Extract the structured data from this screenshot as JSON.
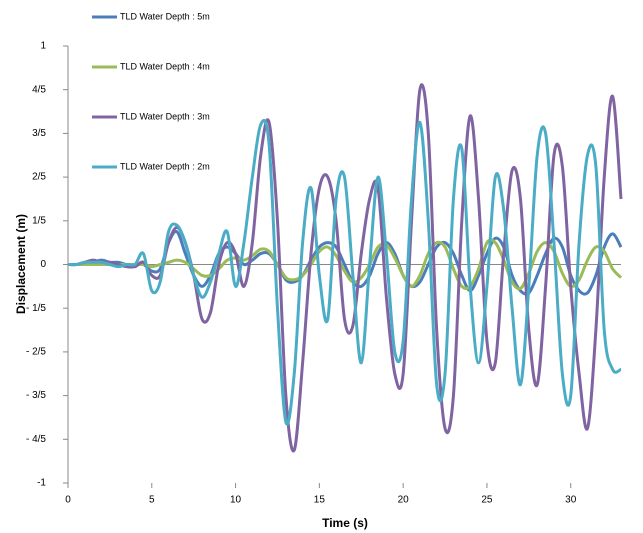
{
  "chart_data": {
    "type": "line",
    "xlabel": "Time (s)",
    "ylabel": "Displacement (m)",
    "x": [
      0,
      0.5,
      1,
      1.5,
      2,
      2.5,
      3,
      3.5,
      4,
      4.5,
      5,
      5.5,
      6,
      6.5,
      7,
      7.5,
      8,
      8.5,
      9,
      9.5,
      10,
      10.5,
      11,
      11.5,
      12,
      12.5,
      13,
      13.5,
      14,
      14.5,
      15,
      15.5,
      16,
      16.5,
      17,
      17.5,
      18,
      18.5,
      19,
      19.5,
      20,
      20.5,
      21,
      21.5,
      22,
      22.5,
      23,
      23.5,
      24,
      24.5,
      25,
      25.5,
      26,
      26.5,
      27,
      27.5,
      28,
      28.5,
      29,
      29.5,
      30,
      30.5,
      31,
      31.5,
      32,
      32.5,
      33
    ],
    "series": [
      {
        "name": "TLD Water Depth : 5m",
        "color": "#4a7ebb",
        "values": [
          0,
          0,
          0.01,
          0.01,
          0.02,
          0.01,
          0.01,
          0,
          0,
          0,
          -0.03,
          -0.02,
          0.1,
          0.15,
          0.05,
          -0.05,
          -0.1,
          -0.05,
          0.05,
          0.08,
          0.05,
          0,
          0.02,
          0.05,
          0.05,
          0,
          -0.07,
          -0.08,
          -0.05,
          0.02,
          0.08,
          0.1,
          0.08,
          0,
          -0.08,
          -0.1,
          -0.05,
          0.05,
          0.1,
          0.05,
          -0.05,
          -0.1,
          -0.08,
          0,
          0.08,
          0.1,
          0.05,
          -0.05,
          -0.12,
          -0.05,
          0.05,
          0.12,
          0.08,
          -0.05,
          -0.12,
          -0.13,
          -0.05,
          0.05,
          0.12,
          0.08,
          -0.05,
          -0.12,
          -0.13,
          -0.05,
          0.08,
          0.14,
          0.08
        ]
      },
      {
        "name": "TLD Water Depth : 4m",
        "color": "#9bbb59",
        "values": [
          0,
          0,
          0,
          0,
          0,
          0,
          0,
          0,
          0,
          0,
          -0.01,
          0,
          0.01,
          0.02,
          0.01,
          -0.02,
          -0.05,
          -0.05,
          -0.02,
          0.02,
          0.03,
          0.02,
          0.04,
          0.07,
          0.06,
          0,
          -0.06,
          -0.07,
          -0.05,
          0,
          0.06,
          0.08,
          0.04,
          -0.03,
          -0.08,
          -0.06,
          0,
          0.08,
          0.09,
          0.03,
          -0.05,
          -0.1,
          -0.05,
          0.05,
          0.1,
          0.08,
          -0.02,
          -0.1,
          -0.1,
          -0.02,
          0.1,
          0.1,
          0.02,
          -0.08,
          -0.11,
          -0.04,
          0.06,
          0.1,
          0.06,
          -0.04,
          -0.1,
          -0.07,
          0.02,
          0.08,
          0.06,
          -0.02,
          -0.06
        ]
      },
      {
        "name": "TLD Water Depth : 3m",
        "color": "#8064a2",
        "values": [
          0,
          0,
          0.01,
          0.02,
          0.01,
          0.01,
          0,
          -0.01,
          -0.01,
          0.01,
          -0.05,
          -0.05,
          0.1,
          0.17,
          0.1,
          -0.05,
          -0.25,
          -0.22,
          0,
          0.1,
          0.05,
          -0.1,
          0.1,
          0.5,
          0.65,
          0.2,
          -0.6,
          -0.85,
          -0.45,
          0.05,
          0.35,
          0.4,
          0.2,
          -0.25,
          -0.28,
          0.05,
          0.3,
          0.35,
          -0.15,
          -0.5,
          -0.5,
          0.2,
          0.8,
          0.6,
          -0.3,
          -0.75,
          -0.6,
          0.2,
          0.68,
          0.3,
          -0.35,
          -0.45,
          0.05,
          0.43,
          0.3,
          -0.3,
          -0.55,
          -0.1,
          0.5,
          0.45,
          -0.1,
          -0.5,
          -0.75,
          -0.3,
          0.4,
          0.77,
          0.3
        ]
      },
      {
        "name": "TLD Water Depth : 2m",
        "color": "#4bacc6",
        "values": [
          0,
          0,
          0.01,
          0.01,
          0.01,
          0,
          -0.01,
          0,
          0,
          0.05,
          -0.12,
          -0.08,
          0.15,
          0.18,
          0.1,
          -0.05,
          -0.15,
          -0.08,
          0.05,
          0.15,
          -0.1,
          0.1,
          0.4,
          0.64,
          0.55,
          -0.2,
          -0.72,
          -0.5,
          0.1,
          0.35,
          -0.05,
          -0.25,
          0.3,
          0.4,
          -0.05,
          -0.45,
          0,
          0.4,
          0.05,
          -0.4,
          -0.35,
          0.3,
          0.65,
          0.2,
          -0.55,
          -0.5,
          0.3,
          0.53,
          -0.1,
          -0.45,
          -0.1,
          0.4,
          0.25,
          -0.2,
          -0.55,
          -0.1,
          0.5,
          0.6,
          0.1,
          -0.5,
          -0.6,
          0.1,
          0.5,
          0.45,
          -0.3,
          -0.48,
          -0.48
        ]
      }
    ],
    "xlim": [
      0,
      33
    ],
    "xticks": [
      0,
      5,
      10,
      15,
      20,
      25,
      30
    ],
    "ylim": [
      -1,
      1
    ],
    "yticks": [
      -1,
      {
        "value": -0.8,
        "label": "- 4/5"
      },
      {
        "value": -0.6,
        "label": "- 3/5"
      },
      {
        "value": -0.4,
        "label": "- 2/5"
      },
      {
        "value": -0.2,
        "label": "- 1/5"
      },
      0,
      {
        "value": 0.2,
        "label": "1/5"
      },
      {
        "value": 0.4,
        "label": "2/5"
      },
      {
        "value": 0.6,
        "label": "3/5"
      },
      {
        "value": 0.8,
        "label": "4/5"
      },
      1
    ],
    "grid": false
  }
}
